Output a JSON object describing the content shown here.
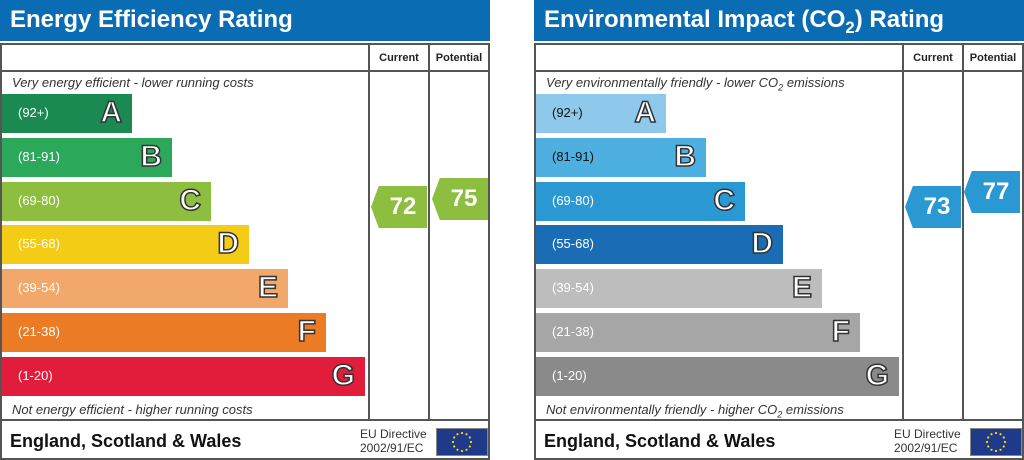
{
  "energy": {
    "title": "Energy Efficiency Rating",
    "current_label": "Current",
    "potential_label": "Potential",
    "top_note": "Very energy efficient - lower running costs",
    "bottom_note": "Not energy efficient - higher running costs",
    "bands": [
      {
        "range": "(92+)",
        "letter": "A",
        "color": "#1a8a52"
      },
      {
        "range": "(81-91)",
        "letter": "B",
        "color": "#2ca85a"
      },
      {
        "range": "(69-80)",
        "letter": "C",
        "color": "#8dbe3f"
      },
      {
        "range": "(55-68)",
        "letter": "D",
        "color": "#f4cc15"
      },
      {
        "range": "(39-54)",
        "letter": "E",
        "color": "#f2a86b"
      },
      {
        "range": "(21-38)",
        "letter": "F",
        "color": "#eb7b25"
      },
      {
        "range": "(1-20)",
        "letter": "G",
        "color": "#e21d3c"
      }
    ],
    "current": {
      "value": "72",
      "color": "#8dbe3f"
    },
    "potential": {
      "value": "75",
      "color": "#8dbe3f"
    },
    "footer": "England, Scotland & Wales",
    "eu_line1": "EU Directive",
    "eu_line2": "2002/91/EC"
  },
  "env": {
    "title": "Environmental Impact (CO",
    "title_sub": "2",
    "title_end": ") Rating",
    "current_label": "Current",
    "potential_label": "Potential",
    "top_note": "Very environmentally friendly - lower CO",
    "top_sub": "2",
    "top_end": " emissions",
    "bottom_note": "Not environmentally friendly - higher CO",
    "bottom_sub": "2",
    "bottom_end": " emissions",
    "bands": [
      {
        "range": "(92+)",
        "letter": "A",
        "color": "#8ec9ec"
      },
      {
        "range": "(81-91)",
        "letter": "B",
        "color": "#4db0e1"
      },
      {
        "range": "(69-80)",
        "letter": "C",
        "color": "#2a98d2"
      },
      {
        "range": "(55-68)",
        "letter": "D",
        "color": "#1a6db4"
      },
      {
        "range": "(39-54)",
        "letter": "E",
        "color": "#bdbdbd"
      },
      {
        "range": "(21-38)",
        "letter": "F",
        "color": "#a6a6a6"
      },
      {
        "range": "(1-20)",
        "letter": "G",
        "color": "#8a8a8a"
      }
    ],
    "current": {
      "value": "73",
      "color": "#2a98d2"
    },
    "potential": {
      "value": "77",
      "color": "#2a98d2"
    },
    "footer": "England, Scotland & Wales",
    "eu_line1": "EU Directive",
    "eu_line2": "2002/91/EC"
  }
}
